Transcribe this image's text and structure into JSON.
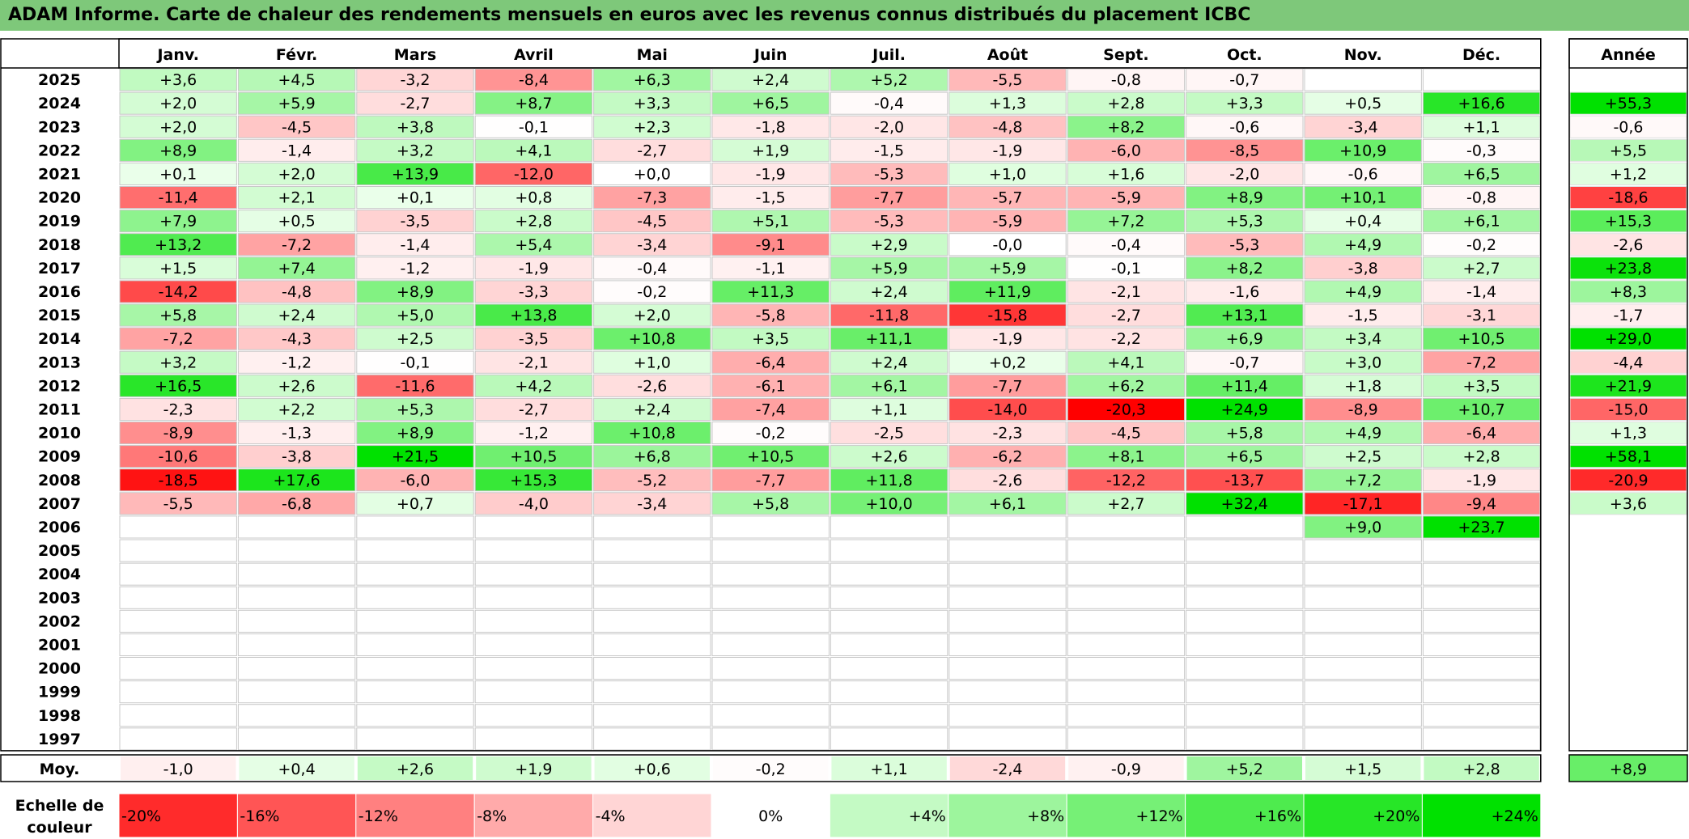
{
  "title": "ADAM Informe. Carte de chaleur des rendements mensuels en euros avec les revenus connus distribués du placement ICBC",
  "chart_data": {
    "type": "heatmap",
    "title": "ADAM Informe. Carte de chaleur des rendements mensuels en euros avec les revenus connus distribués du placement ICBC",
    "months": [
      "Janv.",
      "Févr.",
      "Mars",
      "Avril",
      "Mai",
      "Juin",
      "Juil.",
      "Août",
      "Sept.",
      "Oct.",
      "Nov.",
      "Déc."
    ],
    "year_header": "Année",
    "rows": [
      {
        "year": "2025",
        "values": [
          "+3,6",
          "+4,5",
          "-3,2",
          "-8,4",
          "+6,3",
          "+2,4",
          "+5,2",
          "-5,5",
          "-0,8",
          "-0,7",
          "",
          ""
        ],
        "annual": ""
      },
      {
        "year": "2024",
        "values": [
          "+2,0",
          "+5,9",
          "-2,7",
          "+8,7",
          "+3,3",
          "+6,5",
          "-0,4",
          "+1,3",
          "+2,8",
          "+3,3",
          "+0,5",
          "+16,6"
        ],
        "annual": "+55,3"
      },
      {
        "year": "2023",
        "values": [
          "+2,0",
          "-4,5",
          "+3,8",
          "-0,1",
          "+2,3",
          "-1,8",
          "-2,0",
          "-4,8",
          "+8,2",
          "-0,6",
          "-3,4",
          "+1,1"
        ],
        "annual": "-0,6"
      },
      {
        "year": "2022",
        "values": [
          "+8,9",
          "-1,4",
          "+3,2",
          "+4,1",
          "-2,7",
          "+1,9",
          "-1,5",
          "-1,9",
          "-6,0",
          "-8,5",
          "+10,9",
          "-0,3"
        ],
        "annual": "+5,5"
      },
      {
        "year": "2021",
        "values": [
          "+0,1",
          "+2,0",
          "+13,9",
          "-12,0",
          "+0,0",
          "-1,9",
          "-5,3",
          "+1,0",
          "+1,6",
          "-2,0",
          "-0,6",
          "+6,5"
        ],
        "annual": "+1,2"
      },
      {
        "year": "2020",
        "values": [
          "-11,4",
          "+2,1",
          "+0,1",
          "+0,8",
          "-7,3",
          "-1,5",
          "-7,7",
          "-5,7",
          "-5,9",
          "+8,9",
          "+10,1",
          "-0,8"
        ],
        "annual": "-18,6"
      },
      {
        "year": "2019",
        "values": [
          "+7,9",
          "+0,5",
          "-3,5",
          "+2,8",
          "-4,5",
          "+5,1",
          "-5,3",
          "-5,9",
          "+7,2",
          "+5,3",
          "+0,4",
          "+6,1"
        ],
        "annual": "+15,3"
      },
      {
        "year": "2018",
        "values": [
          "+13,2",
          "-7,2",
          "-1,4",
          "+5,4",
          "-3,4",
          "-9,1",
          "+2,9",
          "-0,0",
          "-0,4",
          "-5,3",
          "+4,9",
          "-0,2"
        ],
        "annual": "-2,6"
      },
      {
        "year": "2017",
        "values": [
          "+1,5",
          "+7,4",
          "-1,2",
          "-1,9",
          "-0,4",
          "-1,1",
          "+5,9",
          "+5,9",
          "-0,1",
          "+8,2",
          "-3,8",
          "+2,7"
        ],
        "annual": "+23,8"
      },
      {
        "year": "2016",
        "values": [
          "-14,2",
          "-4,8",
          "+8,9",
          "-3,3",
          "-0,2",
          "+11,3",
          "+2,4",
          "+11,9",
          "-2,1",
          "-1,6",
          "+4,9",
          "-1,4"
        ],
        "annual": "+8,3"
      },
      {
        "year": "2015",
        "values": [
          "+5,8",
          "+2,4",
          "+5,0",
          "+13,8",
          "+2,0",
          "-5,8",
          "-11,8",
          "-15,8",
          "-2,7",
          "+13,1",
          "-1,5",
          "-3,1"
        ],
        "annual": "-1,7"
      },
      {
        "year": "2014",
        "values": [
          "-7,2",
          "-4,3",
          "+2,5",
          "-3,5",
          "+10,8",
          "+3,5",
          "+11,1",
          "-1,9",
          "-2,2",
          "+6,9",
          "+3,4",
          "+10,5"
        ],
        "annual": "+29,0"
      },
      {
        "year": "2013",
        "values": [
          "+3,2",
          "-1,2",
          "-0,1",
          "-2,1",
          "+1,0",
          "-6,4",
          "+2,4",
          "+0,2",
          "+4,1",
          "-0,7",
          "+3,0",
          "-7,2"
        ],
        "annual": "-4,4"
      },
      {
        "year": "2012",
        "values": [
          "+16,5",
          "+2,6",
          "-11,6",
          "+4,2",
          "-2,6",
          "-6,1",
          "+6,1",
          "-7,7",
          "+6,2",
          "+11,4",
          "+1,8",
          "+3,5"
        ],
        "annual": "+21,9"
      },
      {
        "year": "2011",
        "values": [
          "-2,3",
          "+2,2",
          "+5,3",
          "-2,7",
          "+2,4",
          "-7,4",
          "+1,1",
          "-14,0",
          "-20,3",
          "+24,9",
          "-8,9",
          "+10,7"
        ],
        "annual": "-15,0"
      },
      {
        "year": "2010",
        "values": [
          "-8,9",
          "-1,3",
          "+8,9",
          "-1,2",
          "+10,8",
          "-0,2",
          "-2,5",
          "-2,3",
          "-4,5",
          "+5,8",
          "+4,9",
          "-6,4"
        ],
        "annual": "+1,3"
      },
      {
        "year": "2009",
        "values": [
          "-10,6",
          "-3,8",
          "+21,5",
          "+10,5",
          "+6,8",
          "+10,5",
          "+2,6",
          "-6,2",
          "+8,1",
          "+6,5",
          "+2,5",
          "+2,8"
        ],
        "annual": "+58,1"
      },
      {
        "year": "2008",
        "values": [
          "-18,5",
          "+17,6",
          "-6,0",
          "+15,3",
          "-5,2",
          "-7,7",
          "+11,8",
          "-2,6",
          "-12,2",
          "-13,7",
          "+7,2",
          "-1,9"
        ],
        "annual": "-20,9"
      },
      {
        "year": "2007",
        "values": [
          "-5,5",
          "-6,8",
          "+0,7",
          "-4,0",
          "-3,4",
          "+5,8",
          "+10,0",
          "+6,1",
          "+2,7",
          "+32,4",
          "-17,1",
          "-9,4"
        ],
        "annual": "+3,6"
      },
      {
        "year": "2006",
        "values": [
          "",
          "",
          "",
          "",
          "",
          "",
          "",
          "",
          "",
          "",
          "+9,0",
          "+23,7"
        ],
        "annual": ""
      },
      {
        "year": "2005",
        "values": [
          "",
          "",
          "",
          "",
          "",
          "",
          "",
          "",
          "",
          "",
          "",
          ""
        ],
        "annual": ""
      },
      {
        "year": "2004",
        "values": [
          "",
          "",
          "",
          "",
          "",
          "",
          "",
          "",
          "",
          "",
          "",
          ""
        ],
        "annual": ""
      },
      {
        "year": "2003",
        "values": [
          "",
          "",
          "",
          "",
          "",
          "",
          "",
          "",
          "",
          "",
          "",
          ""
        ],
        "annual": ""
      },
      {
        "year": "2002",
        "values": [
          "",
          "",
          "",
          "",
          "",
          "",
          "",
          "",
          "",
          "",
          "",
          ""
        ],
        "annual": ""
      },
      {
        "year": "2001",
        "values": [
          "",
          "",
          "",
          "",
          "",
          "",
          "",
          "",
          "",
          "",
          "",
          ""
        ],
        "annual": ""
      },
      {
        "year": "2000",
        "values": [
          "",
          "",
          "",
          "",
          "",
          "",
          "",
          "",
          "",
          "",
          "",
          ""
        ],
        "annual": ""
      },
      {
        "year": "1999",
        "values": [
          "",
          "",
          "",
          "",
          "",
          "",
          "",
          "",
          "",
          "",
          "",
          ""
        ],
        "annual": ""
      },
      {
        "year": "1998",
        "values": [
          "",
          "",
          "",
          "",
          "",
          "",
          "",
          "",
          "",
          "",
          "",
          ""
        ],
        "annual": ""
      },
      {
        "year": "1997",
        "values": [
          "",
          "",
          "",
          "",
          "",
          "",
          "",
          "",
          "",
          "",
          "",
          ""
        ],
        "annual": ""
      }
    ],
    "average": {
      "label": "Moy.",
      "values": [
        "-1,0",
        "+0,4",
        "+2,6",
        "+1,9",
        "+0,6",
        "-0,2",
        "+1,1",
        "-2,4",
        "-0,9",
        "+5,2",
        "+1,5",
        "+2,8"
      ],
      "annual": "+8,9"
    },
    "legend": {
      "label_line1": "Echelle de",
      "label_line2": "couleur",
      "items": [
        "-20%",
        "-16%",
        "-12%",
        "-8%",
        "-4%",
        "0%",
        "+4%",
        "+8%",
        "+12%",
        "+16%",
        "+20%",
        "+24%"
      ],
      "steps": [
        -20,
        -16,
        -12,
        -8,
        -4,
        0,
        4,
        8,
        12,
        16,
        20,
        24
      ]
    },
    "colors": {
      "negative": "#ff0000",
      "zero": "#ffffff",
      "positive": "#00dd00",
      "title_bar": "#7ec87a"
    }
  }
}
